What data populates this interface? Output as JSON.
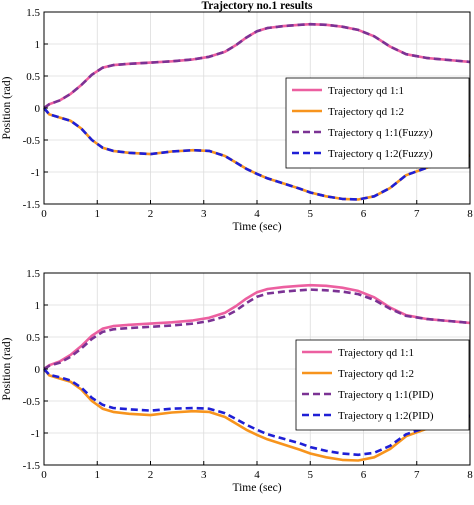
{
  "chart_data": [
    {
      "type": "line",
      "title": "Trajectory no.1 results",
      "xlabel": "Time (sec)",
      "ylabel": "Position (rad)",
      "xlim": [
        0,
        8
      ],
      "ylim": [
        -1.5,
        1.5
      ],
      "xticks": [
        "0",
        "1",
        "2",
        "3",
        "4",
        "5",
        "6",
        "7",
        "8"
      ],
      "yticks": [
        "1.5",
        "1",
        "0.5",
        "0",
        "-0.5",
        "-1",
        "-1.5"
      ],
      "grid": true,
      "legend_position": "right",
      "series": [
        {
          "name": "Trajectory qd 1:1",
          "color": "#ec5fa0",
          "style": "solid",
          "x": [
            0,
            0.1,
            0.3,
            0.5,
            0.7,
            0.9,
            1.1,
            1.3,
            1.6,
            2.0,
            2.4,
            2.8,
            3.1,
            3.4,
            3.6,
            3.8,
            4.0,
            4.2,
            4.5,
            4.8,
            5.0,
            5.3,
            5.6,
            5.9,
            6.2,
            6.5,
            6.8,
            7.2,
            7.6,
            8.0
          ],
          "y": [
            0,
            0.06,
            0.12,
            0.22,
            0.36,
            0.52,
            0.63,
            0.67,
            0.69,
            0.71,
            0.73,
            0.76,
            0.8,
            0.88,
            0.98,
            1.1,
            1.2,
            1.25,
            1.28,
            1.3,
            1.31,
            1.3,
            1.27,
            1.22,
            1.12,
            0.96,
            0.84,
            0.78,
            0.75,
            0.72
          ]
        },
        {
          "name": "Trajectory qd 1:2",
          "color": "#f7941d",
          "style": "solid",
          "x": [
            0,
            0.1,
            0.3,
            0.5,
            0.7,
            0.9,
            1.1,
            1.3,
            1.6,
            2.0,
            2.4,
            2.8,
            3.1,
            3.4,
            3.6,
            3.8,
            4.0,
            4.2,
            4.5,
            4.8,
            5.0,
            5.3,
            5.6,
            5.9,
            6.2,
            6.5,
            6.8,
            7.2,
            7.6,
            8.0
          ],
          "y": [
            0,
            -0.1,
            -0.15,
            -0.2,
            -0.32,
            -0.5,
            -0.62,
            -0.67,
            -0.7,
            -0.72,
            -0.68,
            -0.66,
            -0.67,
            -0.75,
            -0.85,
            -0.95,
            -1.03,
            -1.1,
            -1.18,
            -1.26,
            -1.32,
            -1.38,
            -1.42,
            -1.43,
            -1.38,
            -1.25,
            -1.05,
            -0.93,
            -0.85,
            -0.74
          ]
        },
        {
          "name": "Trajectory q 1:1(Fuzzy)",
          "color": "#7b3294",
          "style": "dashed",
          "x": [
            0,
            0.1,
            0.3,
            0.5,
            0.7,
            0.9,
            1.1,
            1.3,
            1.6,
            2.0,
            2.4,
            2.8,
            3.1,
            3.4,
            3.6,
            3.8,
            4.0,
            4.2,
            4.5,
            4.8,
            5.0,
            5.3,
            5.6,
            5.9,
            6.2,
            6.5,
            6.8,
            7.2,
            7.6,
            8.0
          ],
          "y": [
            0,
            0.06,
            0.12,
            0.22,
            0.36,
            0.52,
            0.63,
            0.67,
            0.69,
            0.71,
            0.73,
            0.76,
            0.8,
            0.88,
            0.98,
            1.1,
            1.2,
            1.25,
            1.28,
            1.3,
            1.31,
            1.3,
            1.27,
            1.22,
            1.12,
            0.96,
            0.84,
            0.78,
            0.75,
            0.72
          ]
        },
        {
          "name": "Trajectory q 1:2(Fuzzy)",
          "color": "#1f1fd6",
          "style": "dashed",
          "x": [
            0,
            0.1,
            0.3,
            0.5,
            0.7,
            0.9,
            1.1,
            1.3,
            1.6,
            2.0,
            2.4,
            2.8,
            3.1,
            3.4,
            3.6,
            3.8,
            4.0,
            4.2,
            4.5,
            4.8,
            5.0,
            5.3,
            5.6,
            5.9,
            6.2,
            6.5,
            6.8,
            7.2,
            7.6,
            8.0
          ],
          "y": [
            0,
            -0.1,
            -0.15,
            -0.2,
            -0.32,
            -0.5,
            -0.62,
            -0.67,
            -0.7,
            -0.72,
            -0.68,
            -0.66,
            -0.67,
            -0.75,
            -0.85,
            -0.95,
            -1.03,
            -1.1,
            -1.18,
            -1.26,
            -1.32,
            -1.38,
            -1.42,
            -1.43,
            -1.38,
            -1.25,
            -1.05,
            -0.93,
            -0.85,
            -0.74
          ]
        }
      ]
    },
    {
      "type": "line",
      "title": "",
      "xlabel": "Time (sec)",
      "ylabel": "Position (rad)",
      "xlim": [
        0,
        8
      ],
      "ylim": [
        -1.5,
        1.5
      ],
      "xticks": [
        "0",
        "1",
        "2",
        "3",
        "4",
        "5",
        "6",
        "7",
        "8"
      ],
      "yticks": [
        "1.5",
        "1",
        "0.5",
        "0",
        "-0.5",
        "-1",
        "-1.5"
      ],
      "grid": true,
      "legend_position": "bottom-right",
      "series": [
        {
          "name": "Trajectory qd 1:1",
          "color": "#ec5fa0",
          "style": "solid",
          "x": [
            0,
            0.1,
            0.3,
            0.5,
            0.7,
            0.9,
            1.1,
            1.3,
            1.6,
            2.0,
            2.4,
            2.8,
            3.1,
            3.4,
            3.6,
            3.8,
            4.0,
            4.2,
            4.5,
            4.8,
            5.0,
            5.3,
            5.6,
            5.9,
            6.2,
            6.5,
            6.8,
            7.2,
            7.6,
            8.0
          ],
          "y": [
            0,
            0.06,
            0.12,
            0.22,
            0.36,
            0.52,
            0.63,
            0.67,
            0.69,
            0.71,
            0.73,
            0.76,
            0.8,
            0.88,
            0.98,
            1.1,
            1.2,
            1.25,
            1.28,
            1.3,
            1.31,
            1.3,
            1.27,
            1.22,
            1.12,
            0.96,
            0.84,
            0.78,
            0.75,
            0.72
          ]
        },
        {
          "name": "Trajectory qd 1:2",
          "color": "#f7941d",
          "style": "solid",
          "x": [
            0,
            0.1,
            0.3,
            0.5,
            0.7,
            0.9,
            1.1,
            1.3,
            1.6,
            2.0,
            2.4,
            2.8,
            3.1,
            3.4,
            3.6,
            3.8,
            4.0,
            4.2,
            4.5,
            4.8,
            5.0,
            5.3,
            5.6,
            5.9,
            6.2,
            6.5,
            6.8,
            7.2,
            7.6,
            8.0
          ],
          "y": [
            0,
            -0.1,
            -0.15,
            -0.2,
            -0.32,
            -0.5,
            -0.62,
            -0.67,
            -0.7,
            -0.72,
            -0.68,
            -0.66,
            -0.67,
            -0.75,
            -0.85,
            -0.95,
            -1.03,
            -1.1,
            -1.18,
            -1.26,
            -1.32,
            -1.38,
            -1.42,
            -1.43,
            -1.38,
            -1.25,
            -1.05,
            -0.93,
            -0.85,
            -0.74
          ]
        },
        {
          "name": "Trajectory q 1:1(PID)",
          "color": "#7b3294",
          "style": "dashed",
          "x": [
            0,
            0.1,
            0.3,
            0.5,
            0.7,
            0.9,
            1.1,
            1.3,
            1.6,
            2.0,
            2.4,
            2.8,
            3.1,
            3.4,
            3.6,
            3.8,
            4.0,
            4.2,
            4.5,
            4.8,
            5.0,
            5.3,
            5.6,
            5.9,
            6.2,
            6.5,
            6.8,
            7.2,
            7.6,
            8.0
          ],
          "y": [
            0,
            0.05,
            0.1,
            0.19,
            0.32,
            0.47,
            0.58,
            0.62,
            0.64,
            0.66,
            0.68,
            0.71,
            0.75,
            0.82,
            0.91,
            1.03,
            1.13,
            1.18,
            1.21,
            1.23,
            1.24,
            1.23,
            1.21,
            1.17,
            1.08,
            0.94,
            0.83,
            0.78,
            0.75,
            0.72
          ]
        },
        {
          "name": "Trajectory q 1:2(PID)",
          "color": "#1f1fd6",
          "style": "dashed",
          "x": [
            0,
            0.1,
            0.3,
            0.5,
            0.7,
            0.9,
            1.1,
            1.3,
            1.6,
            2.0,
            2.4,
            2.8,
            3.1,
            3.4,
            3.6,
            3.8,
            4.0,
            4.2,
            4.5,
            4.8,
            5.0,
            5.3,
            5.6,
            5.9,
            6.2,
            6.5,
            6.8,
            7.2,
            7.6,
            8.0
          ],
          "y": [
            0,
            -0.09,
            -0.13,
            -0.18,
            -0.29,
            -0.45,
            -0.56,
            -0.61,
            -0.63,
            -0.65,
            -0.62,
            -0.61,
            -0.62,
            -0.69,
            -0.78,
            -0.87,
            -0.95,
            -1.02,
            -1.09,
            -1.16,
            -1.22,
            -1.28,
            -1.32,
            -1.34,
            -1.31,
            -1.2,
            -1.02,
            -0.91,
            -0.84,
            -0.73
          ]
        }
      ]
    }
  ]
}
